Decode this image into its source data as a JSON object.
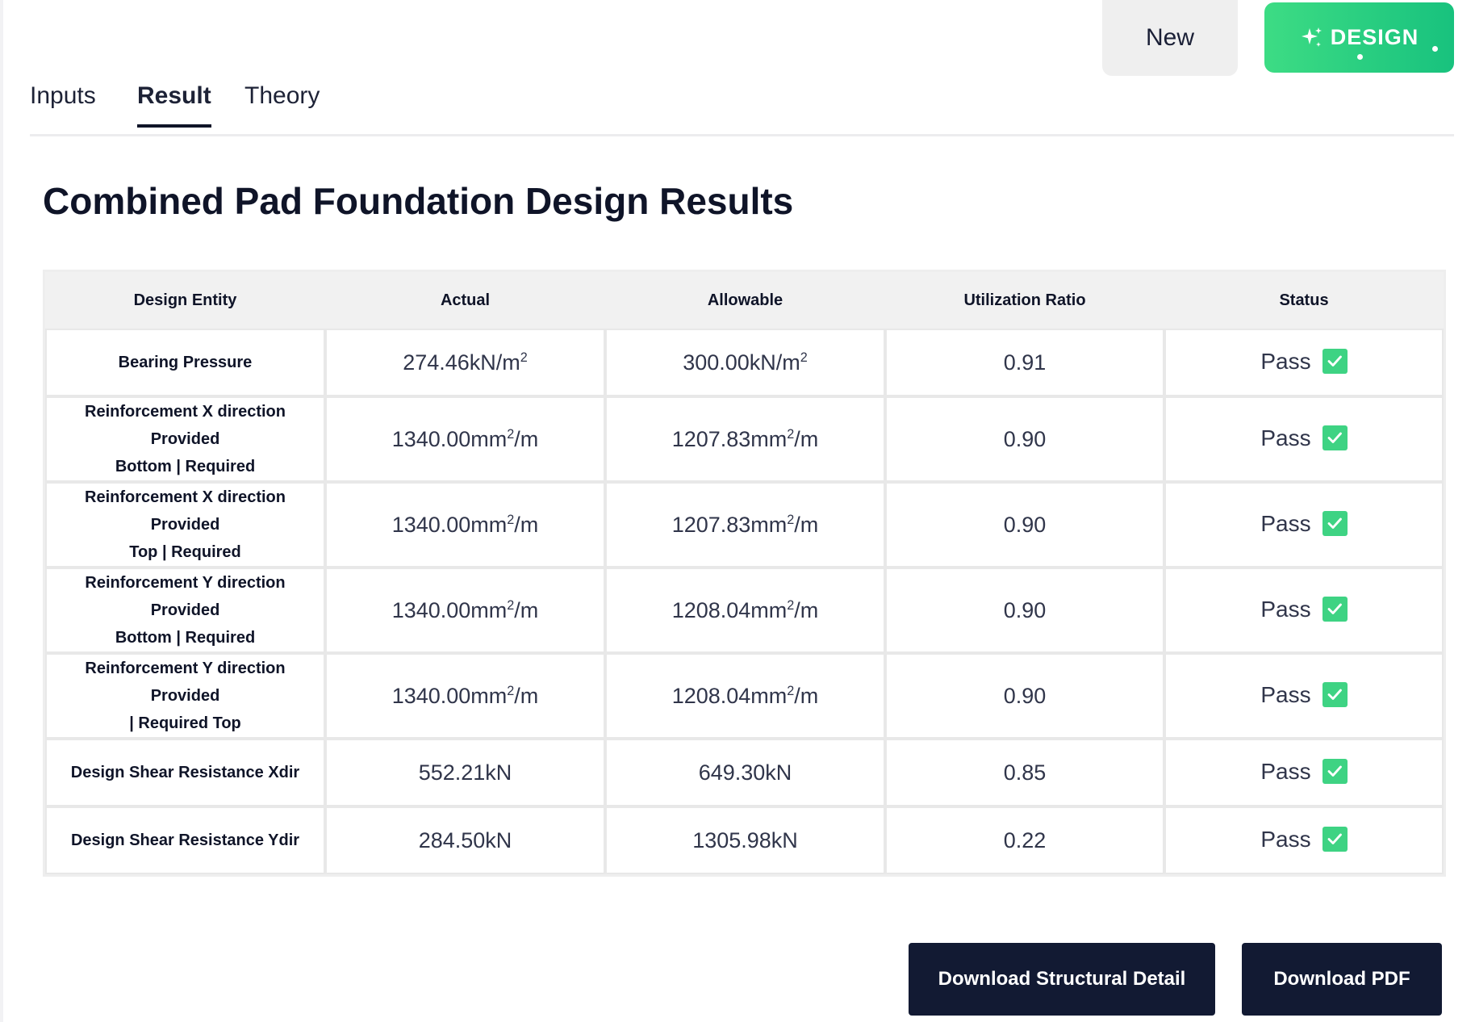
{
  "header": {
    "new_label": "New",
    "design_label": "DESIGN"
  },
  "tabs": [
    {
      "label": "Inputs"
    },
    {
      "label": "Result"
    },
    {
      "label": "Theory"
    }
  ],
  "active_tab": "Result",
  "page_title": "Combined Pad Foundation Design Results",
  "table": {
    "columns": [
      "Design Entity",
      "Actual",
      "Allowable",
      "Utilization Ratio",
      "Status"
    ],
    "rows": [
      {
        "entity": [
          "Bearing Pressure"
        ],
        "actual": {
          "num": "274.46kN/m",
          "sup": "2",
          "suffix": ""
        },
        "allowable": {
          "num": "300.00kN/m",
          "sup": "2",
          "suffix": ""
        },
        "ratio": "0.91",
        "status": "Pass"
      },
      {
        "entity": [
          "Reinforcement X direction Provided",
          "Bottom | Required"
        ],
        "actual": {
          "num": "1340.00mm",
          "sup": "2",
          "suffix": "/m"
        },
        "allowable": {
          "num": "1207.83mm",
          "sup": "2",
          "suffix": "/m"
        },
        "ratio": "0.90",
        "status": "Pass"
      },
      {
        "entity": [
          "Reinforcement X direction Provided",
          "Top | Required"
        ],
        "actual": {
          "num": "1340.00mm",
          "sup": "2",
          "suffix": "/m"
        },
        "allowable": {
          "num": "1207.83mm",
          "sup": "2",
          "suffix": "/m"
        },
        "ratio": "0.90",
        "status": "Pass"
      },
      {
        "entity": [
          "Reinforcement Y direction Provided",
          "Bottom | Required"
        ],
        "actual": {
          "num": "1340.00mm",
          "sup": "2",
          "suffix": "/m"
        },
        "allowable": {
          "num": "1208.04mm",
          "sup": "2",
          "suffix": "/m"
        },
        "ratio": "0.90",
        "status": "Pass"
      },
      {
        "entity": [
          "Reinforcement Y direction Provided",
          "| Required Top"
        ],
        "actual": {
          "num": "1340.00mm",
          "sup": "2",
          "suffix": "/m"
        },
        "allowable": {
          "num": "1208.04mm",
          "sup": "2",
          "suffix": "/m"
        },
        "ratio": "0.90",
        "status": "Pass"
      },
      {
        "entity": [
          "Design Shear Resistance Xdir"
        ],
        "actual": {
          "num": "552.21kN",
          "sup": "",
          "suffix": ""
        },
        "allowable": {
          "num": "649.30kN",
          "sup": "",
          "suffix": ""
        },
        "ratio": "0.85",
        "status": "Pass"
      },
      {
        "entity": [
          "Design Shear Resistance Ydir"
        ],
        "actual": {
          "num": "284.50kN",
          "sup": "",
          "suffix": ""
        },
        "allowable": {
          "num": "1305.98kN",
          "sup": "",
          "suffix": ""
        },
        "ratio": "0.22",
        "status": "Pass"
      }
    ]
  },
  "actions": {
    "download_structural_label": "Download Structural Detail",
    "download_pdf_label": "Download PDF"
  },
  "colors": {
    "accent_green": "#3ed383",
    "dark_navy": "#121a33"
  },
  "icons": {
    "status_pass": "check-icon",
    "design": "sparkle-icon"
  }
}
